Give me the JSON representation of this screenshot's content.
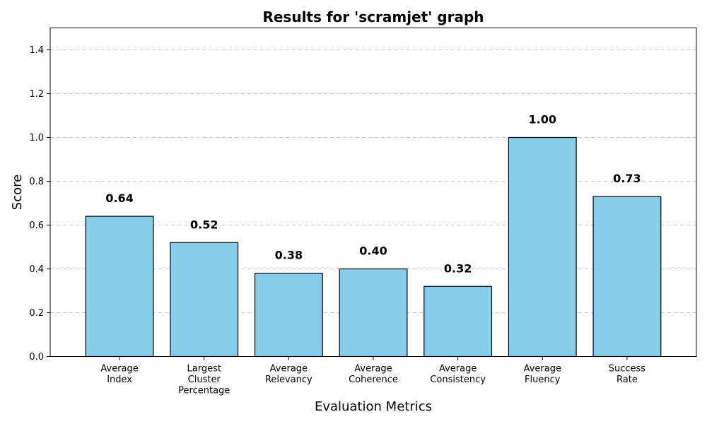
{
  "chart_data": {
    "type": "bar",
    "title": "Results for 'scramjet' graph",
    "xlabel": "Evaluation Metrics",
    "ylabel": "Score",
    "ylim": [
      0,
      1.5
    ],
    "yticks": [
      "0.0",
      "0.2",
      "0.4",
      "0.6",
      "0.8",
      "1.0",
      "1.2",
      "1.4"
    ],
    "grid": "y-dashed",
    "categories": [
      [
        "Average",
        "Index"
      ],
      [
        "Largest",
        "Cluster",
        "Percentage"
      ],
      [
        "Average",
        "Relevancy"
      ],
      [
        "Average",
        "Coherence"
      ],
      [
        "Average",
        "Consistency"
      ],
      [
        "Average",
        "Fluency"
      ],
      [
        "Success",
        "Rate"
      ]
    ],
    "values": [
      0.64,
      0.52,
      0.38,
      0.4,
      0.32,
      1.0,
      0.73
    ],
    "value_labels": [
      "0.64",
      "0.52",
      "0.38",
      "0.40",
      "0.32",
      "1.00",
      "0.73"
    ],
    "colors": {
      "bar": "#87ceeb",
      "edge": "#000000",
      "grid": "#c8c8c8"
    }
  }
}
